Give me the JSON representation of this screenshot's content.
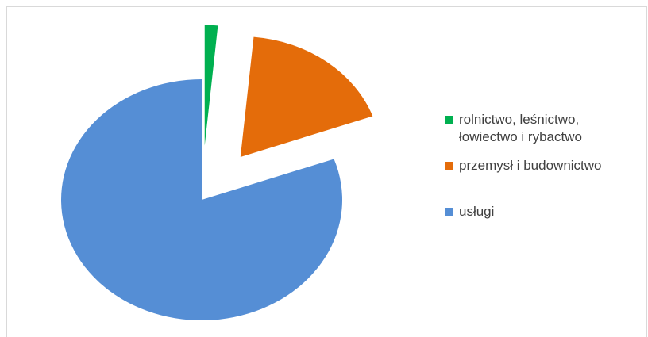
{
  "chart_data": {
    "type": "pie",
    "categories": [
      "rolnictwo, leśnictwo, łowiectwo i rybactwo",
      "przemysł i budownictwo",
      "usługi"
    ],
    "values": [
      1.5,
      18,
      80.5
    ],
    "colors": [
      "#00b050",
      "#e46c0a",
      "#558ed5"
    ],
    "legend": "right"
  }
}
